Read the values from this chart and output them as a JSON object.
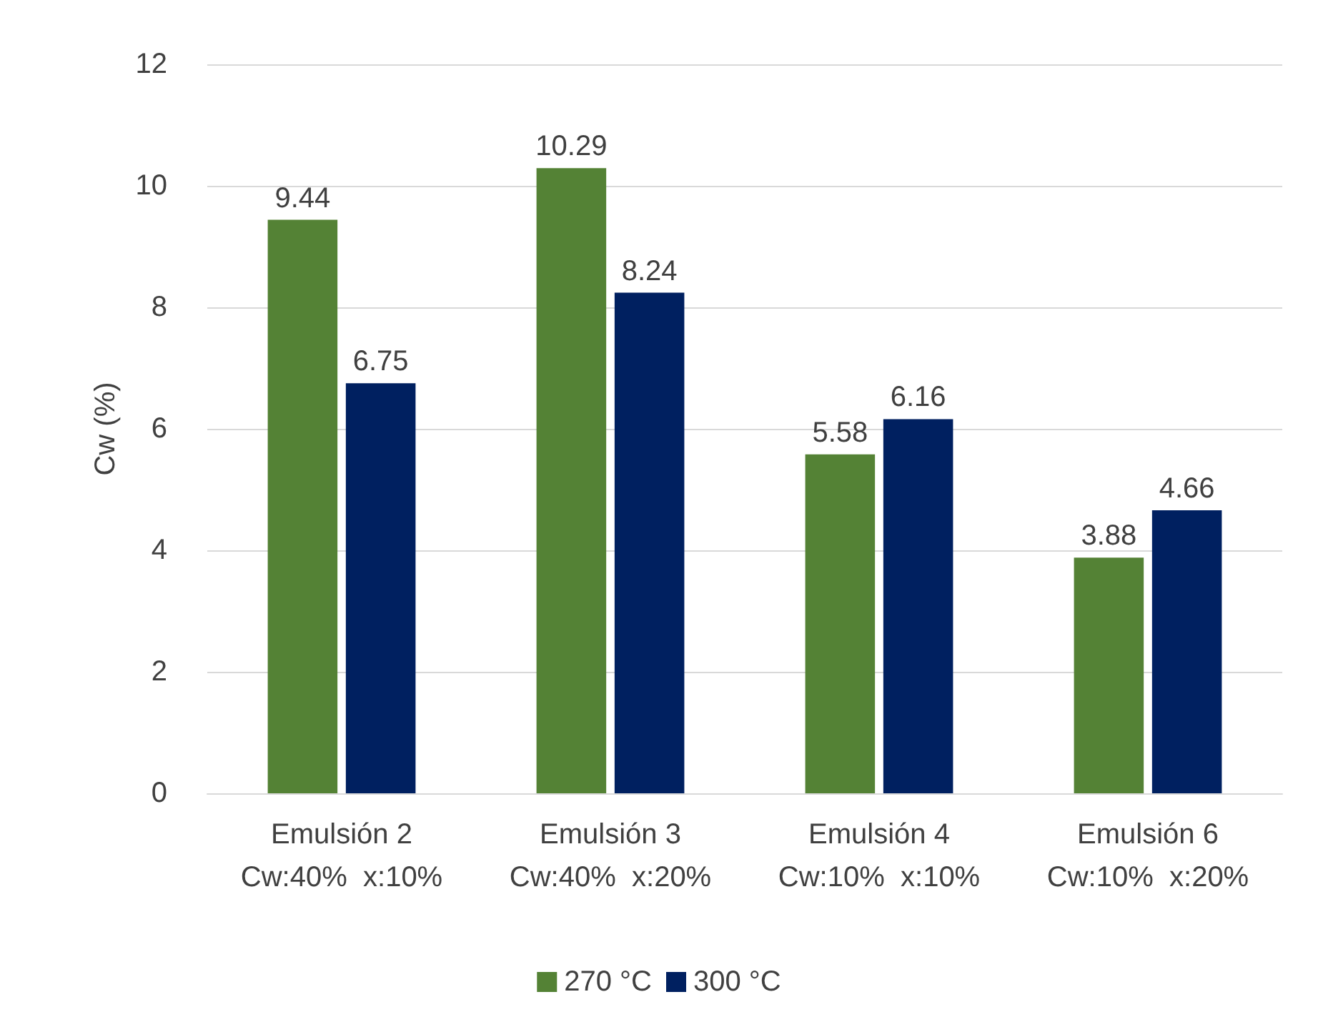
{
  "chart_data": {
    "type": "bar",
    "ylabel": "Cw (%)",
    "categories": [
      "Emulsión 2\nCw:40%  x:10%",
      "Emulsión 3\nCw:40%  x:20%",
      "Emulsión 4\nCw:10%  x:10%",
      "Emulsión 6\nCw:10%  x:20%"
    ],
    "series": [
      {
        "name": "270 °C",
        "color": "#548235",
        "values": [
          9.44,
          10.29,
          5.58,
          3.88
        ]
      },
      {
        "name": "300 °C",
        "color": "#002060",
        "values": [
          6.75,
          8.24,
          6.16,
          4.66
        ]
      }
    ],
    "ylim": [
      0,
      12
    ],
    "yticks": [
      0,
      2,
      4,
      6,
      8,
      10,
      12
    ],
    "grid": "y",
    "legend": "bottom",
    "data_labels": true
  }
}
